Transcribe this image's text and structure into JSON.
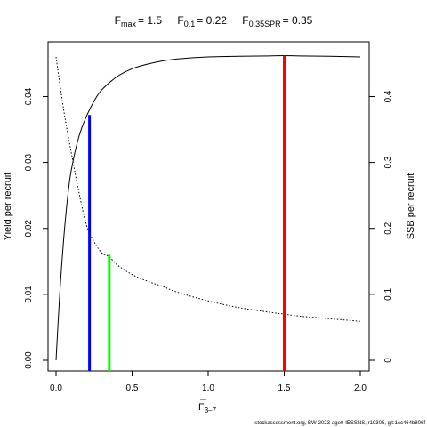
{
  "chart_data": {
    "type": "line",
    "title": {
      "parts": [
        {
          "main": "F",
          "sub": "max",
          "value": "= 1.5"
        },
        {
          "main": "F",
          "sub": "0.1",
          "value": "= 0.22"
        },
        {
          "main": "F",
          "sub": "0.35SPR",
          "value": "= 0.35"
        }
      ]
    },
    "xlabel": {
      "main": "F",
      "sub": "3–7"
    },
    "ylabel_left": "Yield per recruit",
    "ylabel_right": "SSB per recruit",
    "xlim": [
      0,
      2
    ],
    "ylim_left": [
      0,
      0.046
    ],
    "ylim_right": [
      0,
      0.46
    ],
    "x_ticks": [
      {
        "value": 0,
        "label": "0.0"
      },
      {
        "value": 0.5,
        "label": "0.5"
      },
      {
        "value": 1,
        "label": "1.0"
      },
      {
        "value": 1.5,
        "label": "1.5"
      },
      {
        "value": 2,
        "label": "2.0"
      }
    ],
    "y_ticks_left": [
      {
        "value": 0,
        "label": "0.00"
      },
      {
        "value": 0.01,
        "label": "0.01"
      },
      {
        "value": 0.02,
        "label": "0.02"
      },
      {
        "value": 0.03,
        "label": "0.03"
      },
      {
        "value": 0.04,
        "label": "0.04"
      }
    ],
    "y_ticks_right": [
      {
        "value": 0,
        "label": "0"
      },
      {
        "value": 0.1,
        "label": "0.1"
      },
      {
        "value": 0.2,
        "label": "0.2"
      },
      {
        "value": 0.3,
        "label": "0.3"
      },
      {
        "value": 0.4,
        "label": "0.4"
      }
    ],
    "series": [
      {
        "axis": "left",
        "style": "solid",
        "color": "#000000",
        "x": [
          0,
          0.025,
          0.05,
          0.075,
          0.1,
          0.15,
          0.2,
          0.25,
          0.3,
          0.4,
          0.5,
          0.6,
          0.7,
          0.8,
          1.0,
          1.2,
          1.4,
          1.5,
          1.6,
          1.8,
          2.0
        ],
        "y": [
          0,
          0.0103,
          0.0183,
          0.0245,
          0.0288,
          0.0339,
          0.037,
          0.0393,
          0.041,
          0.043,
          0.0442,
          0.0449,
          0.0454,
          0.0457,
          0.046,
          0.0461,
          0.04615,
          0.0462,
          0.04615,
          0.0461,
          0.046
        ]
      },
      {
        "axis": "right",
        "style": "dotted",
        "color": "#000000",
        "x": [
          0,
          0.05,
          0.1,
          0.15,
          0.2,
          0.25,
          0.3,
          0.35,
          0.4,
          0.5,
          0.6,
          0.7,
          0.8,
          1.0,
          1.2,
          1.4,
          1.5,
          1.6,
          1.8,
          2.0
        ],
        "y": [
          0.46,
          0.38,
          0.315,
          0.255,
          0.205,
          0.18,
          0.163,
          0.157,
          0.145,
          0.13,
          0.12,
          0.112,
          0.103,
          0.09,
          0.08,
          0.073,
          0.07,
          0.067,
          0.063,
          0.059
        ]
      }
    ],
    "reference_lines": [
      {
        "name": "Fmax",
        "x": 1.5,
        "y_top": 0.0462,
        "color": "#ff0000"
      },
      {
        "name": "F0.1",
        "x": 0.22,
        "y_top": 0.0372,
        "color": "#0000ff"
      },
      {
        "name": "F0.35SPR",
        "x": 0.35,
        "y_top": 0.016,
        "color": "#00ff00"
      }
    ]
  },
  "footer": "stockassessment.org, BW-2023-age0-IESSNS, r19305, git:1cc464b806f"
}
